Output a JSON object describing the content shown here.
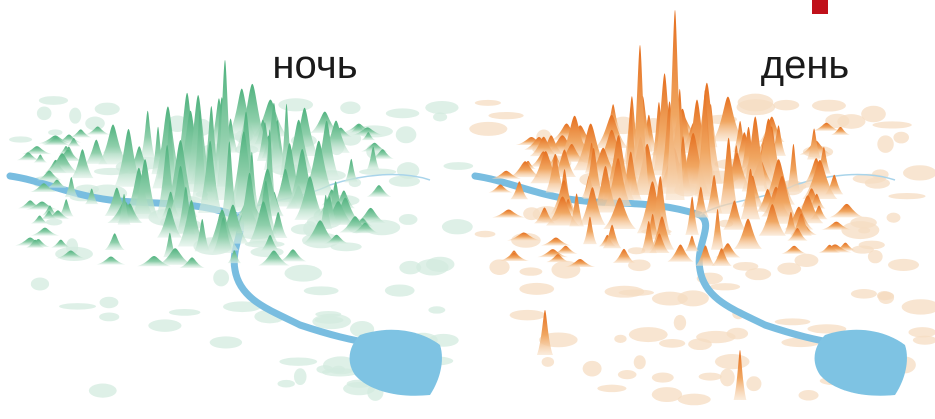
{
  "panels": [
    {
      "label": "ночь"
    },
    {
      "label": "день"
    }
  ]
}
